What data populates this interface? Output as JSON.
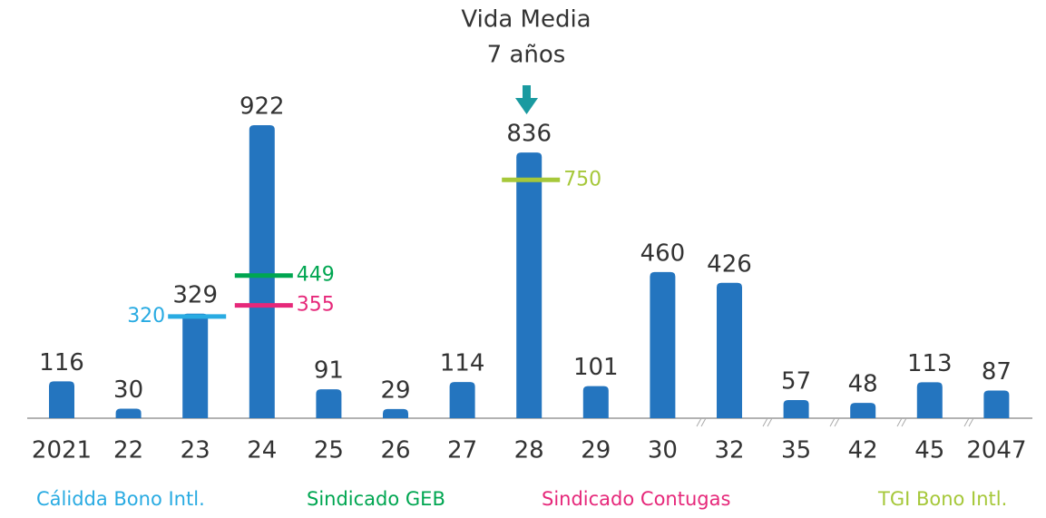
{
  "chart_data": {
    "type": "bar",
    "title": "Vida Media",
    "subtitle": "7 años",
    "categories": [
      "2021",
      "22",
      "23",
      "24",
      "25",
      "26",
      "27",
      "28",
      "29",
      "30",
      "32",
      "35",
      "42",
      "45",
      "2047"
    ],
    "values": [
      116,
      30,
      329,
      922,
      91,
      29,
      114,
      836,
      101,
      460,
      426,
      57,
      48,
      113,
      87
    ],
    "color": "#2475bf",
    "ylim": [
      0,
      1000
    ],
    "yticks": [],
    "grid": false,
    "markers": [
      {
        "name": "Cálidda Bono Intl.",
        "color": "#29abe2",
        "category": "23",
        "value": 320
      },
      {
        "name": "Sindicado GEB",
        "color": "#00a651",
        "category": "24",
        "value": 449
      },
      {
        "name": "Sindicado Contugas",
        "color": "#e6287a",
        "category": "24",
        "value": 355
      },
      {
        "name": "TGI Bono Intl.",
        "color": "#a6c83a",
        "category": "28",
        "value": 750
      }
    ]
  }
}
